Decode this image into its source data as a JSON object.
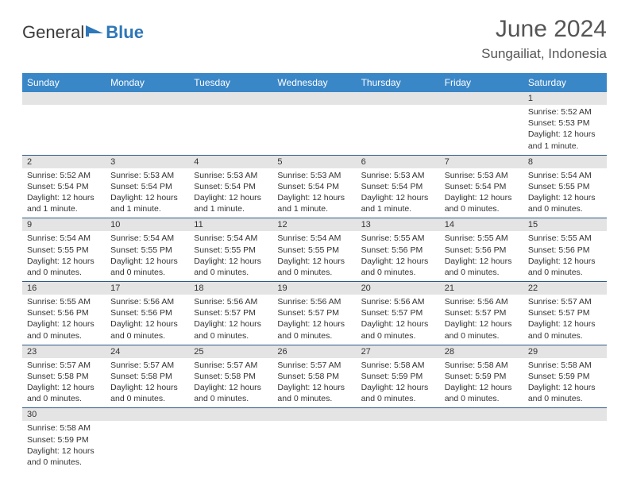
{
  "logo": {
    "text1": "General",
    "text2": "Blue"
  },
  "title": "June 2024",
  "location": "Sungailiat, Indonesia",
  "colors": {
    "header_bg": "#3a87c8",
    "row_border": "#2e5a8a",
    "daynum_bg": "#e4e4e4",
    "logo_blue": "#2e77b8"
  },
  "day_names": [
    "Sunday",
    "Monday",
    "Tuesday",
    "Wednesday",
    "Thursday",
    "Friday",
    "Saturday"
  ],
  "weeks": [
    [
      null,
      null,
      null,
      null,
      null,
      null,
      {
        "n": "1",
        "sr": "5:52 AM",
        "ss": "5:53 PM",
        "dl": "12 hours and 1 minute."
      }
    ],
    [
      {
        "n": "2",
        "sr": "5:52 AM",
        "ss": "5:54 PM",
        "dl": "12 hours and 1 minute."
      },
      {
        "n": "3",
        "sr": "5:53 AM",
        "ss": "5:54 PM",
        "dl": "12 hours and 1 minute."
      },
      {
        "n": "4",
        "sr": "5:53 AM",
        "ss": "5:54 PM",
        "dl": "12 hours and 1 minute."
      },
      {
        "n": "5",
        "sr": "5:53 AM",
        "ss": "5:54 PM",
        "dl": "12 hours and 1 minute."
      },
      {
        "n": "6",
        "sr": "5:53 AM",
        "ss": "5:54 PM",
        "dl": "12 hours and 1 minute."
      },
      {
        "n": "7",
        "sr": "5:53 AM",
        "ss": "5:54 PM",
        "dl": "12 hours and 0 minutes."
      },
      {
        "n": "8",
        "sr": "5:54 AM",
        "ss": "5:55 PM",
        "dl": "12 hours and 0 minutes."
      }
    ],
    [
      {
        "n": "9",
        "sr": "5:54 AM",
        "ss": "5:55 PM",
        "dl": "12 hours and 0 minutes."
      },
      {
        "n": "10",
        "sr": "5:54 AM",
        "ss": "5:55 PM",
        "dl": "12 hours and 0 minutes."
      },
      {
        "n": "11",
        "sr": "5:54 AM",
        "ss": "5:55 PM",
        "dl": "12 hours and 0 minutes."
      },
      {
        "n": "12",
        "sr": "5:54 AM",
        "ss": "5:55 PM",
        "dl": "12 hours and 0 minutes."
      },
      {
        "n": "13",
        "sr": "5:55 AM",
        "ss": "5:56 PM",
        "dl": "12 hours and 0 minutes."
      },
      {
        "n": "14",
        "sr": "5:55 AM",
        "ss": "5:56 PM",
        "dl": "12 hours and 0 minutes."
      },
      {
        "n": "15",
        "sr": "5:55 AM",
        "ss": "5:56 PM",
        "dl": "12 hours and 0 minutes."
      }
    ],
    [
      {
        "n": "16",
        "sr": "5:55 AM",
        "ss": "5:56 PM",
        "dl": "12 hours and 0 minutes."
      },
      {
        "n": "17",
        "sr": "5:56 AM",
        "ss": "5:56 PM",
        "dl": "12 hours and 0 minutes."
      },
      {
        "n": "18",
        "sr": "5:56 AM",
        "ss": "5:57 PM",
        "dl": "12 hours and 0 minutes."
      },
      {
        "n": "19",
        "sr": "5:56 AM",
        "ss": "5:57 PM",
        "dl": "12 hours and 0 minutes."
      },
      {
        "n": "20",
        "sr": "5:56 AM",
        "ss": "5:57 PM",
        "dl": "12 hours and 0 minutes."
      },
      {
        "n": "21",
        "sr": "5:56 AM",
        "ss": "5:57 PM",
        "dl": "12 hours and 0 minutes."
      },
      {
        "n": "22",
        "sr": "5:57 AM",
        "ss": "5:57 PM",
        "dl": "12 hours and 0 minutes."
      }
    ],
    [
      {
        "n": "23",
        "sr": "5:57 AM",
        "ss": "5:58 PM",
        "dl": "12 hours and 0 minutes."
      },
      {
        "n": "24",
        "sr": "5:57 AM",
        "ss": "5:58 PM",
        "dl": "12 hours and 0 minutes."
      },
      {
        "n": "25",
        "sr": "5:57 AM",
        "ss": "5:58 PM",
        "dl": "12 hours and 0 minutes."
      },
      {
        "n": "26",
        "sr": "5:57 AM",
        "ss": "5:58 PM",
        "dl": "12 hours and 0 minutes."
      },
      {
        "n": "27",
        "sr": "5:58 AM",
        "ss": "5:59 PM",
        "dl": "12 hours and 0 minutes."
      },
      {
        "n": "28",
        "sr": "5:58 AM",
        "ss": "5:59 PM",
        "dl": "12 hours and 0 minutes."
      },
      {
        "n": "29",
        "sr": "5:58 AM",
        "ss": "5:59 PM",
        "dl": "12 hours and 0 minutes."
      }
    ],
    [
      {
        "n": "30",
        "sr": "5:58 AM",
        "ss": "5:59 PM",
        "dl": "12 hours and 0 minutes."
      },
      null,
      null,
      null,
      null,
      null,
      null
    ]
  ],
  "labels": {
    "sunrise": "Sunrise:",
    "sunset": "Sunset:",
    "daylight": "Daylight:"
  }
}
